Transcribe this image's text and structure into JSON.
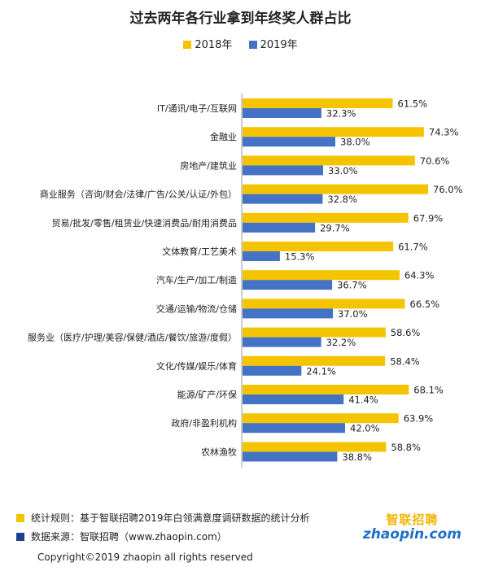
{
  "title": "过去两年各行业拿到年终奖人群占比",
  "colors": {
    "series_2018": "#F5C400",
    "series_2019": "#4472C4"
  },
  "chart_data": {
    "type": "bar",
    "orientation": "horizontal",
    "title": "过去两年各行业拿到年终奖人群占比",
    "legend_position": "top",
    "categories": [
      "IT/通讯/电子/互联网",
      "金融业",
      "房地产/建筑业",
      "商业服务（咨询/财会/法律/广告/公关/认证/外包）",
      "贸易/批发/零售/租赁业/快速消费品/耐用消费品",
      "文体教育/工艺美术",
      "汽车/生产/加工/制造",
      "交通/运输/物流/仓储",
      "服务业（医疗/护理/美容/保健/酒店/餐饮/旅游/度假）",
      "文化/传媒/娱乐/体育",
      "能源/矿产/环保",
      "政府/非盈利机构",
      "农林渔牧"
    ],
    "series": [
      {
        "name": "2018年",
        "values": [
          61.5,
          74.3,
          70.6,
          76.0,
          67.9,
          61.7,
          64.3,
          66.5,
          58.6,
          58.4,
          68.1,
          63.9,
          58.8
        ]
      },
      {
        "name": "2019年",
        "values": [
          32.3,
          38.0,
          33.0,
          32.8,
          29.7,
          15.3,
          36.7,
          37.0,
          32.2,
          24.1,
          41.4,
          42.0,
          38.8
        ]
      }
    ],
    "xlim": [
      0,
      80
    ],
    "unit": "%",
    "grid": false
  },
  "footer": {
    "note1": "统计规则：基于智联招聘2019年白领满意度调研数据的统计分析",
    "note2": "数据来源：智联招聘（www.zhaopin.com）",
    "copyright": "Copyright©2019 zhaopin all rights reserved",
    "logo_cn": "智联招聘",
    "logo_en": "zhaopin.com"
  }
}
